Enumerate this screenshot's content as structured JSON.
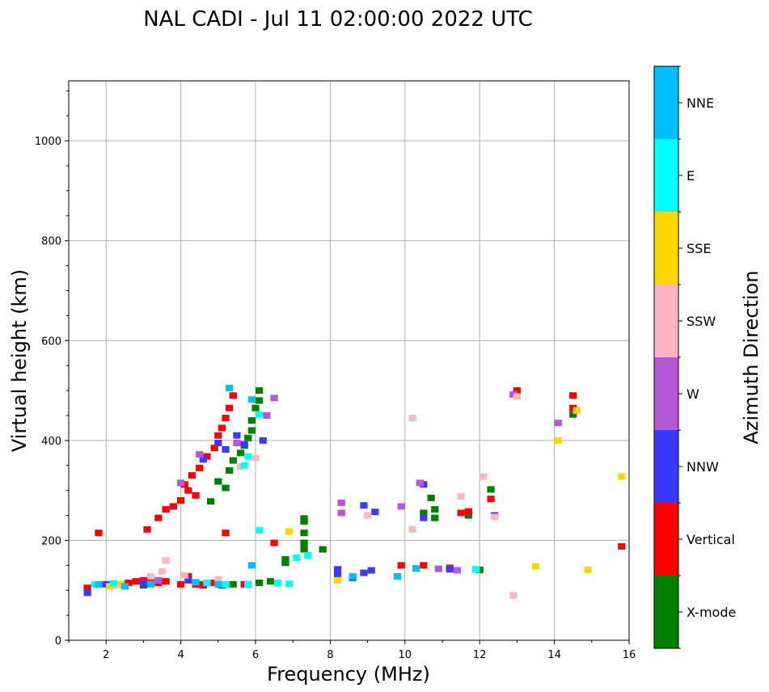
{
  "chart_data": {
    "type": "scatter",
    "title": "NAL CADI - Jul 11 02:00:00 2022 UTC",
    "xlabel": "Frequency (MHz)",
    "ylabel": "Virtual height (km)",
    "xlim": [
      1,
      16
    ],
    "ylim": [
      0,
      1120
    ],
    "xticks": [
      "2",
      "4",
      "6",
      "8",
      "10",
      "12",
      "14",
      "16"
    ],
    "yticks": [
      "0",
      "200",
      "400",
      "600",
      "800",
      "1000"
    ],
    "grid": true,
    "colorbar": {
      "label": "Azimuth Direction",
      "entries": [
        {
          "name": "X-mode",
          "color": "#008000"
        },
        {
          "name": "Vertical",
          "color": "#ff0000"
        },
        {
          "name": "NNW",
          "color": "#3a3aff"
        },
        {
          "name": "W",
          "color": "#b657d6"
        },
        {
          "name": "SSW",
          "color": "#ffb6c1"
        },
        {
          "name": "SSE",
          "color": "#ffd700"
        },
        {
          "name": "E",
          "color": "#00ffff"
        },
        {
          "name": "NNE",
          "color": "#00bfff"
        }
      ]
    },
    "series": [
      {
        "name": "X-mode",
        "points": [
          [
            2.5,
            112
          ],
          [
            3.0,
            110
          ],
          [
            4.5,
            112
          ],
          [
            5.0,
            116
          ],
          [
            5.4,
            112
          ],
          [
            5.8,
            112
          ],
          [
            6.1,
            115
          ],
          [
            6.4,
            118
          ],
          [
            6.8,
            155
          ],
          [
            6.8,
            162
          ],
          [
            7.3,
            182
          ],
          [
            7.3,
            195
          ],
          [
            7.3,
            215
          ],
          [
            7.3,
            238
          ],
          [
            7.3,
            244
          ],
          [
            7.8,
            182
          ],
          [
            10.5,
            255
          ],
          [
            10.7,
            285
          ],
          [
            10.8,
            262
          ],
          [
            10.8,
            245
          ],
          [
            11.7,
            250
          ],
          [
            12.0,
            141
          ],
          [
            12.3,
            302
          ],
          [
            5.2,
            305
          ],
          [
            5.3,
            340
          ],
          [
            5.4,
            360
          ],
          [
            5.6,
            375
          ],
          [
            5.7,
            390
          ],
          [
            5.8,
            405
          ],
          [
            5.9,
            420
          ],
          [
            5.9,
            440
          ],
          [
            6.0,
            465
          ],
          [
            6.1,
            480
          ],
          [
            6.1,
            500
          ],
          [
            5.0,
            318
          ],
          [
            4.8,
            278
          ],
          [
            13.0,
            495
          ],
          [
            14.5,
            452
          ]
        ]
      },
      {
        "name": "Vertical",
        "points": [
          [
            1.5,
            105
          ],
          [
            1.8,
            215
          ],
          [
            2.6,
            115
          ],
          [
            2.8,
            118
          ],
          [
            3.0,
            120
          ],
          [
            3.2,
            125
          ],
          [
            3.4,
            115
          ],
          [
            3.6,
            118
          ],
          [
            4.0,
            112
          ],
          [
            4.2,
            128
          ],
          [
            4.4,
            112
          ],
          [
            4.6,
            110
          ],
          [
            4.8,
            115
          ],
          [
            5.1,
            110
          ],
          [
            5.7,
            112
          ],
          [
            3.1,
            222
          ],
          [
            3.4,
            245
          ],
          [
            3.6,
            262
          ],
          [
            3.8,
            268
          ],
          [
            4.0,
            280
          ],
          [
            4.1,
            312
          ],
          [
            4.3,
            330
          ],
          [
            4.5,
            345
          ],
          [
            4.7,
            368
          ],
          [
            4.9,
            385
          ],
          [
            5.0,
            410
          ],
          [
            5.1,
            425
          ],
          [
            5.2,
            445
          ],
          [
            5.3,
            465
          ],
          [
            5.4,
            490
          ],
          [
            4.2,
            300
          ],
          [
            4.4,
            290
          ],
          [
            5.2,
            215
          ],
          [
            6.5,
            195
          ],
          [
            9.9,
            150
          ],
          [
            10.5,
            150
          ],
          [
            11.2,
            145
          ],
          [
            11.5,
            255
          ],
          [
            11.7,
            258
          ],
          [
            12.3,
            283
          ],
          [
            13.0,
            500
          ],
          [
            14.5,
            490
          ],
          [
            14.5,
            465
          ],
          [
            15.8,
            188
          ]
        ]
      },
      {
        "name": "NNW",
        "points": [
          [
            1.5,
            95
          ],
          [
            2.0,
            112
          ],
          [
            3.0,
            115
          ],
          [
            4.2,
            120
          ],
          [
            8.2,
            142
          ],
          [
            8.2,
            130
          ],
          [
            8.6,
            125
          ],
          [
            8.9,
            135
          ],
          [
            9.1,
            140
          ],
          [
            8.9,
            270
          ],
          [
            9.2,
            257
          ],
          [
            10.5,
            312
          ],
          [
            10.5,
            245
          ],
          [
            11.2,
            142
          ],
          [
            12.4,
            250
          ],
          [
            4.6,
            362
          ],
          [
            5.0,
            395
          ],
          [
            5.2,
            382
          ],
          [
            5.5,
            410
          ],
          [
            5.7,
            392
          ],
          [
            6.2,
            400
          ]
        ]
      },
      {
        "name": "W",
        "points": [
          [
            3.4,
            120
          ],
          [
            4.0,
            315
          ],
          [
            4.5,
            372
          ],
          [
            5.5,
            395
          ],
          [
            6.3,
            450
          ],
          [
            6.5,
            485
          ],
          [
            8.3,
            275
          ],
          [
            8.3,
            255
          ],
          [
            9.9,
            268
          ],
          [
            10.4,
            315
          ],
          [
            10.9,
            143
          ],
          [
            11.4,
            140
          ],
          [
            12.9,
            492
          ],
          [
            14.1,
            435
          ]
        ]
      },
      {
        "name": "SSW",
        "points": [
          [
            2.2,
            110
          ],
          [
            3.2,
            128
          ],
          [
            3.5,
            138
          ],
          [
            3.6,
            160
          ],
          [
            4.1,
            130
          ],
          [
            5.0,
            122
          ],
          [
            5.6,
            348
          ],
          [
            6.0,
            365
          ],
          [
            9.0,
            250
          ],
          [
            10.2,
            445
          ],
          [
            10.2,
            222
          ],
          [
            11.5,
            288
          ],
          [
            12.1,
            328
          ],
          [
            12.4,
            247
          ],
          [
            12.9,
            90
          ],
          [
            13.0,
            488
          ]
        ]
      },
      {
        "name": "SSE",
        "points": [
          [
            2.1,
            108
          ],
          [
            2.4,
            112
          ],
          [
            6.9,
            218
          ],
          [
            8.2,
            120
          ],
          [
            13.5,
            148
          ],
          [
            14.1,
            400
          ],
          [
            14.9,
            141
          ],
          [
            15.8,
            328
          ],
          [
            14.6,
            460
          ]
        ]
      },
      {
        "name": "E",
        "points": [
          [
            1.7,
            112
          ],
          [
            2.2,
            114
          ],
          [
            4.7,
            115
          ],
          [
            5.2,
            112
          ],
          [
            5.8,
            112
          ],
          [
            6.1,
            220
          ],
          [
            6.6,
            115
          ],
          [
            6.9,
            113
          ],
          [
            7.1,
            165
          ],
          [
            7.4,
            170
          ],
          [
            11.9,
            142
          ],
          [
            5.7,
            350
          ],
          [
            5.8,
            368
          ],
          [
            6.1,
            452
          ]
        ]
      },
      {
        "name": "NNE",
        "points": [
          [
            1.8,
            112
          ],
          [
            2.5,
            108
          ],
          [
            3.2,
            112
          ],
          [
            4.4,
            116
          ],
          [
            5.0,
            112
          ],
          [
            5.9,
            150
          ],
          [
            8.6,
            128
          ],
          [
            9.8,
            128
          ],
          [
            10.3,
            144
          ],
          [
            5.9,
            482
          ],
          [
            5.3,
            505
          ]
        ]
      }
    ]
  }
}
